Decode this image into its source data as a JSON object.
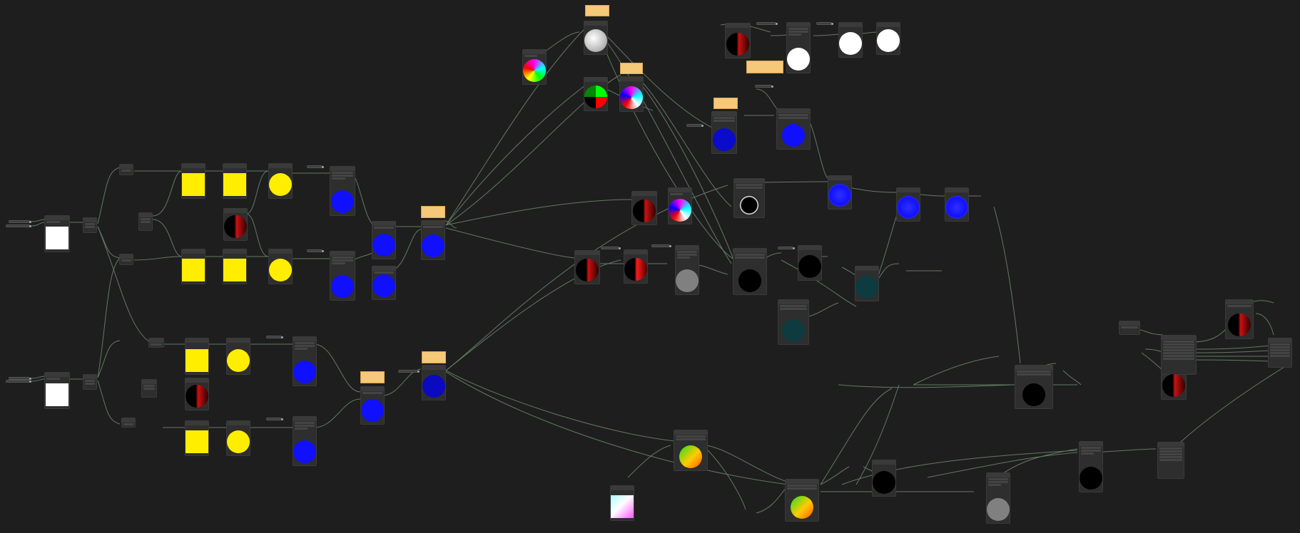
{
  "app": {
    "name": "",
    "accent": "#f6c879",
    "wire_color": "#6f8a6f",
    "background": "#1e1e1e"
  },
  "frames": [
    {
      "id": "f1",
      "title": "",
      "subtitle": ""
    },
    {
      "id": "f2",
      "title": "",
      "subtitle": ""
    },
    {
      "id": "f3",
      "title": "",
      "subtitle": ""
    },
    {
      "id": "f4",
      "title": "",
      "subtitle": ""
    },
    {
      "id": "f5",
      "title": "",
      "subtitle": ""
    },
    {
      "id": "f6",
      "title": "",
      "subtitle": ""
    },
    {
      "id": "f7",
      "title": "",
      "subtitle": ""
    }
  ],
  "previews": {
    "white": "#ffffff",
    "yellow": "#ffee00",
    "blue": "#1010ff",
    "black": "#000000",
    "grey": "#808080",
    "dark_teal": "#0d3b3f"
  }
}
